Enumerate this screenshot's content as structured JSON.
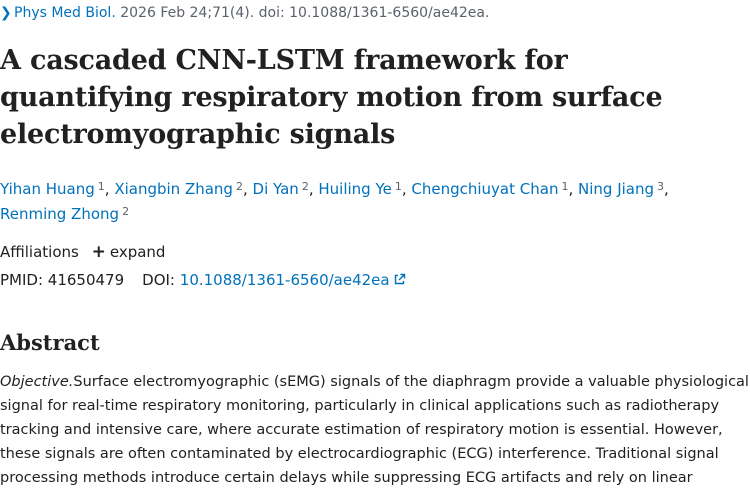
{
  "citation": {
    "journal": "Phys Med Biol.",
    "details": "2026 Feb 24;71(4). doi: 10.1088/1361-6560/ae42ea."
  },
  "title": "A cascaded CNN-LSTM framework for quantifying respiratory motion from surface electromyographic signals",
  "authors": [
    {
      "name": "Yihan Huang",
      "aff": "1"
    },
    {
      "name": "Xiangbin Zhang",
      "aff": "2"
    },
    {
      "name": "Di Yan",
      "aff": "2"
    },
    {
      "name": "Huiling Ye",
      "aff": "1"
    },
    {
      "name": "Chengchiuyat Chan",
      "aff": "1"
    },
    {
      "name": "Ning Jiang",
      "aff": "3"
    },
    {
      "name": "Renming Zhong",
      "aff": "2"
    }
  ],
  "affiliations": {
    "label": "Affiliations",
    "expand_label": "expand"
  },
  "ids": {
    "pmid_label": "PMID:",
    "pmid": "41650479",
    "doi_label": "DOI:",
    "doi": "10.1088/1361-6560/ae42ea"
  },
  "abstract": {
    "heading": "Abstract",
    "label": "Objective.",
    "text": "Surface electromyographic (sEMG) signals of the diaphragm provide a valuable physiological signal for real-time respiratory monitoring, particularly in clinical applications such as radiotherapy tracking and intensive care, where accurate estimation of respiratory motion is essential. However, these signals are often contaminated by electrocardiographic (ECG) interference. Traditional signal processing methods introduce certain delays while suppressing ECG artifacts and rely on linear"
  },
  "colors": {
    "link": "#0071bc",
    "text": "#212121",
    "muted": "#5b616b"
  }
}
